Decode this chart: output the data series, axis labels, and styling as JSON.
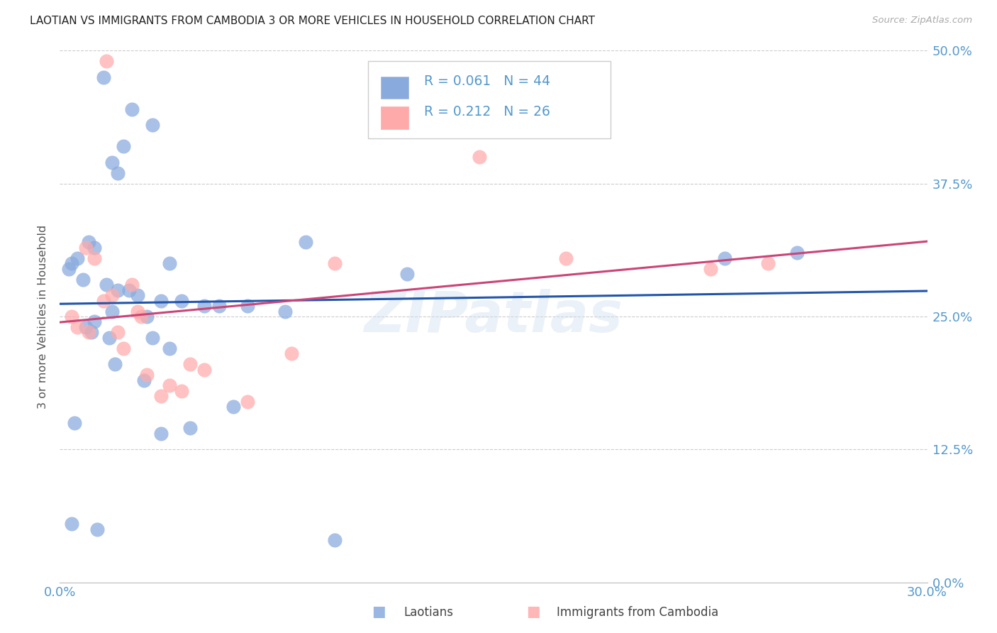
{
  "title": "LAOTIAN VS IMMIGRANTS FROM CAMBODIA 3 OR MORE VEHICLES IN HOUSEHOLD CORRELATION CHART",
  "source": "Source: ZipAtlas.com",
  "ylabel": "3 or more Vehicles in Household",
  "xlim": [
    0.0,
    30.0
  ],
  "ylim": [
    0.0,
    50.0
  ],
  "ytick_vals": [
    0.0,
    12.5,
    25.0,
    37.5,
    50.0
  ],
  "xtick_vals": [
    0.0,
    5.0,
    10.0,
    15.0,
    20.0,
    25.0,
    30.0
  ],
  "legend_label1": "Laotians",
  "legend_label2": "Immigrants from Cambodia",
  "legend_r1": "R = 0.061",
  "legend_n1": "N = 44",
  "legend_r2": "R = 0.212",
  "legend_n2": "N = 26",
  "color_blue": "#88AADD",
  "color_pink": "#FFAAAA",
  "color_blue_line": "#2255AA",
  "color_pink_line": "#CC4477",
  "color_tick_labels": "#5599CC",
  "color_grid": "#CCCCCC",
  "color_title": "#222222",
  "watermark": "ZIPatlas",
  "laotian_x": [
    1.5,
    2.5,
    3.2,
    2.2,
    1.8,
    2.0,
    1.0,
    1.2,
    0.6,
    0.4,
    0.3,
    0.8,
    1.6,
    2.0,
    2.7,
    3.5,
    4.2,
    5.0,
    6.5,
    8.5,
    1.8,
    3.0,
    3.8,
    1.2,
    0.9,
    1.1,
    1.7,
    2.4,
    3.2,
    3.8,
    5.5,
    12.0,
    23.0,
    25.5,
    0.5,
    1.9,
    2.9,
    4.5,
    6.0,
    7.8,
    9.5,
    0.4,
    1.3,
    3.5
  ],
  "laotian_y": [
    47.5,
    44.5,
    43.0,
    41.0,
    39.5,
    38.5,
    32.0,
    31.5,
    30.5,
    30.0,
    29.5,
    28.5,
    28.0,
    27.5,
    27.0,
    26.5,
    26.5,
    26.0,
    26.0,
    32.0,
    25.5,
    25.0,
    30.0,
    24.5,
    24.0,
    23.5,
    23.0,
    27.5,
    23.0,
    22.0,
    26.0,
    29.0,
    30.5,
    31.0,
    15.0,
    20.5,
    19.0,
    14.5,
    16.5,
    25.5,
    4.0,
    5.5,
    5.0,
    14.0
  ],
  "cambodia_x": [
    0.4,
    0.6,
    1.0,
    1.2,
    1.5,
    1.8,
    2.2,
    2.5,
    2.7,
    3.0,
    3.5,
    4.2,
    4.5,
    5.0,
    6.5,
    8.0,
    0.9,
    1.6,
    2.0,
    2.8,
    3.8,
    9.5,
    22.5,
    24.5,
    14.5,
    17.5
  ],
  "cambodia_y": [
    25.0,
    24.0,
    23.5,
    30.5,
    26.5,
    27.0,
    22.0,
    28.0,
    25.5,
    19.5,
    17.5,
    18.0,
    20.5,
    20.0,
    17.0,
    21.5,
    31.5,
    49.0,
    23.5,
    25.0,
    18.5,
    30.0,
    29.5,
    30.0,
    40.0,
    30.5
  ]
}
